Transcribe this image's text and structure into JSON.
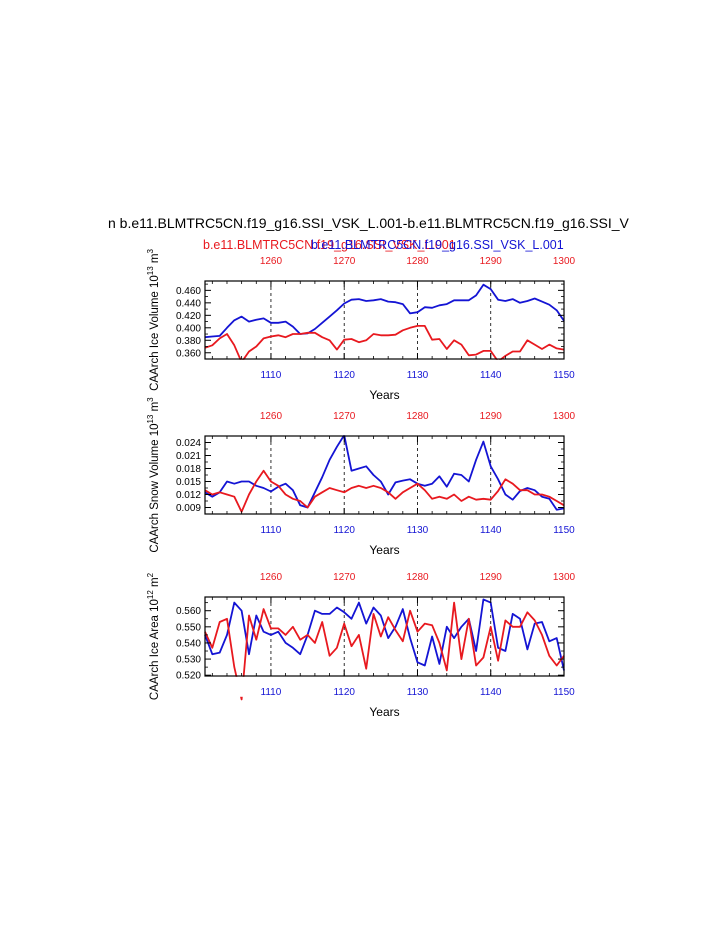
{
  "figure": {
    "main_title": "n b.e11.BLMTRC5CN.f19_g16.SSI_VSK_L.001-b.e11.BLMTRC5CN.f19_g16.SSI_V",
    "case_red": "b.e11.BLMTRC5CN.f19_g16.SSI_VSK_L.001",
    "case_blue": "b.e11.BLMTRC5CN.f19_g16.SSI_VSK_L.001",
    "colors": {
      "red": "#e8191f",
      "blue": "#1414d4"
    }
  },
  "chart_data": [
    {
      "type": "line",
      "ylabel": "CAArch Ice Volume",
      "yunit_main": "10",
      "yunit_exp": "13",
      "yunit_tail": " m",
      "yunit_tail_exp": "3",
      "xlabel": "Years",
      "ylim": [
        0.35,
        0.475
      ],
      "yticks": [
        0.36,
        0.38,
        0.4,
        0.42,
        0.44,
        0.46
      ],
      "ytick_labels": [
        "0.360",
        "0.380",
        "0.400",
        "0.420",
        "0.440",
        "0.460"
      ],
      "x_bottom_range": [
        1101,
        1150
      ],
      "x_bottom_ticks": [
        1110,
        1120,
        1130,
        1140,
        1150
      ],
      "x_top_range": [
        1251,
        1300
      ],
      "x_top_ticks": [
        1260,
        1270,
        1280,
        1290,
        1300
      ],
      "series": [
        {
          "color": "blue",
          "axis": "bottom",
          "x": [
            1101,
            1102,
            1103,
            1104,
            1105,
            1106,
            1107,
            1108,
            1109,
            1110,
            1111,
            1112,
            1113,
            1114,
            1115,
            1116,
            1117,
            1118,
            1119,
            1120,
            1121,
            1122,
            1123,
            1124,
            1125,
            1126,
            1127,
            1128,
            1129,
            1130,
            1131,
            1132,
            1133,
            1134,
            1135,
            1136,
            1137,
            1138,
            1139,
            1140,
            1141,
            1142,
            1143,
            1144,
            1145,
            1146,
            1147,
            1148,
            1149,
            1150
          ],
          "y": [
            0.385,
            0.386,
            0.387,
            0.4,
            0.412,
            0.418,
            0.41,
            0.413,
            0.415,
            0.408,
            0.408,
            0.41,
            0.402,
            0.39,
            0.391,
            0.398,
            0.408,
            0.418,
            0.428,
            0.439,
            0.445,
            0.446,
            0.443,
            0.444,
            0.446,
            0.442,
            0.441,
            0.438,
            0.423,
            0.425,
            0.433,
            0.432,
            0.436,
            0.438,
            0.444,
            0.444,
            0.444,
            0.452,
            0.469,
            0.462,
            0.445,
            0.443,
            0.446,
            0.44,
            0.443,
            0.447,
            0.442,
            0.437,
            0.428,
            0.411
          ]
        },
        {
          "color": "red",
          "axis": "top",
          "x": [
            1251,
            1252,
            1253,
            1254,
            1255,
            1256,
            1257,
            1258,
            1259,
            1260,
            1261,
            1262,
            1263,
            1264,
            1265,
            1266,
            1267,
            1268,
            1269,
            1270,
            1271,
            1272,
            1273,
            1274,
            1275,
            1276,
            1277,
            1278,
            1279,
            1280,
            1281,
            1282,
            1283,
            1284,
            1285,
            1286,
            1287,
            1288,
            1289,
            1290,
            1291,
            1292,
            1293,
            1294,
            1295,
            1296,
            1297,
            1298,
            1299,
            1300
          ],
          "y": [
            0.368,
            0.372,
            0.383,
            0.39,
            0.372,
            0.345,
            0.362,
            0.37,
            0.383,
            0.386,
            0.388,
            0.385,
            0.39,
            0.39,
            0.392,
            0.392,
            0.385,
            0.38,
            0.365,
            0.381,
            0.382,
            0.377,
            0.38,
            0.39,
            0.388,
            0.388,
            0.389,
            0.396,
            0.4,
            0.403,
            0.403,
            0.381,
            0.382,
            0.366,
            0.38,
            0.373,
            0.356,
            0.357,
            0.363,
            0.363,
            0.346,
            0.355,
            0.362,
            0.362,
            0.38,
            0.373,
            0.366,
            0.373,
            0.367,
            0.365
          ]
        }
      ]
    },
    {
      "type": "line",
      "ylabel": "CAArch Snow Volume",
      "yunit_main": "10",
      "yunit_exp": "13",
      "yunit_tail": " m",
      "yunit_tail_exp": "3",
      "xlabel": "Years",
      "ylim": [
        0.0075,
        0.0255
      ],
      "yticks": [
        0.009,
        0.012,
        0.015,
        0.018,
        0.021,
        0.024
      ],
      "ytick_labels": [
        "0.009",
        "0.012",
        "0.015",
        "0.018",
        "0.021",
        "0.024"
      ],
      "x_bottom_range": [
        1101,
        1150
      ],
      "x_bottom_ticks": [
        1110,
        1120,
        1130,
        1140,
        1150
      ],
      "x_top_range": [
        1251,
        1300
      ],
      "x_top_ticks": [
        1260,
        1270,
        1280,
        1290,
        1300
      ],
      "series": [
        {
          "color": "blue",
          "axis": "bottom",
          "x": [
            1101,
            1102,
            1103,
            1104,
            1105,
            1106,
            1107,
            1108,
            1109,
            1110,
            1111,
            1112,
            1113,
            1114,
            1115,
            1116,
            1117,
            1118,
            1119,
            1120,
            1121,
            1122,
            1123,
            1124,
            1125,
            1126,
            1127,
            1128,
            1129,
            1130,
            1131,
            1132,
            1133,
            1134,
            1135,
            1136,
            1137,
            1138,
            1139,
            1140,
            1141,
            1142,
            1143,
            1144,
            1145,
            1146,
            1147,
            1148,
            1149,
            1150
          ],
          "y": [
            0.0125,
            0.0115,
            0.0125,
            0.015,
            0.0145,
            0.015,
            0.015,
            0.014,
            0.0135,
            0.0127,
            0.0138,
            0.0145,
            0.013,
            0.0095,
            0.009,
            0.0125,
            0.016,
            0.02,
            0.023,
            0.0257,
            0.0175,
            0.018,
            0.0185,
            0.0165,
            0.015,
            0.012,
            0.0148,
            0.0152,
            0.0155,
            0.0145,
            0.014,
            0.0145,
            0.0162,
            0.0138,
            0.0168,
            0.0165,
            0.015,
            0.02,
            0.0242,
            0.0185,
            0.0155,
            0.012,
            0.0108,
            0.0128,
            0.0135,
            0.013,
            0.0115,
            0.011,
            0.0085,
            0.0088
          ]
        },
        {
          "color": "red",
          "axis": "top",
          "x": [
            1251,
            1252,
            1253,
            1254,
            1255,
            1256,
            1257,
            1258,
            1259,
            1260,
            1261,
            1262,
            1263,
            1264,
            1265,
            1266,
            1267,
            1268,
            1269,
            1270,
            1271,
            1272,
            1273,
            1274,
            1275,
            1276,
            1277,
            1278,
            1279,
            1280,
            1281,
            1282,
            1283,
            1284,
            1285,
            1286,
            1287,
            1288,
            1289,
            1290,
            1291,
            1292,
            1293,
            1294,
            1295,
            1296,
            1297,
            1298,
            1299,
            1300
          ],
          "y": [
            0.013,
            0.012,
            0.0125,
            0.012,
            0.0115,
            0.008,
            0.012,
            0.015,
            0.0175,
            0.015,
            0.014,
            0.012,
            0.011,
            0.0105,
            0.009,
            0.0115,
            0.0125,
            0.0135,
            0.013,
            0.0125,
            0.0135,
            0.014,
            0.0135,
            0.014,
            0.0135,
            0.0125,
            0.011,
            0.0125,
            0.0135,
            0.0145,
            0.013,
            0.011,
            0.0115,
            0.011,
            0.012,
            0.0105,
            0.0115,
            0.0108,
            0.011,
            0.0108,
            0.0128,
            0.0155,
            0.0145,
            0.013,
            0.013,
            0.012,
            0.012,
            0.0115,
            0.0105,
            0.0095
          ]
        }
      ]
    },
    {
      "type": "line",
      "ylabel": "CAArch Ice Area",
      "yunit_main": "10",
      "yunit_exp": "12",
      "yunit_tail": " m",
      "yunit_tail_exp": "2",
      "xlabel": "Years",
      "ylim": [
        0.5195,
        0.5685
      ],
      "yticks": [
        0.52,
        0.53,
        0.54,
        0.55,
        0.56
      ],
      "ytick_labels": [
        "0.520",
        "0.530",
        "0.540",
        "0.550",
        "0.560"
      ],
      "x_bottom_range": [
        1101,
        1150
      ],
      "x_bottom_ticks": [
        1110,
        1120,
        1130,
        1140,
        1150
      ],
      "x_top_range": [
        1251,
        1300
      ],
      "x_top_ticks": [
        1260,
        1270,
        1280,
        1290,
        1300
      ],
      "series": [
        {
          "color": "blue",
          "axis": "bottom",
          "x": [
            1101,
            1102,
            1103,
            1104,
            1105,
            1106,
            1107,
            1108,
            1109,
            1110,
            1111,
            1112,
            1113,
            1114,
            1115,
            1116,
            1117,
            1118,
            1119,
            1120,
            1121,
            1122,
            1123,
            1124,
            1125,
            1126,
            1127,
            1128,
            1129,
            1130,
            1131,
            1132,
            1133,
            1134,
            1135,
            1136,
            1137,
            1138,
            1139,
            1140,
            1141,
            1142,
            1143,
            1144,
            1145,
            1146,
            1147,
            1148,
            1149,
            1150
          ],
          "y": [
            0.545,
            0.533,
            0.534,
            0.545,
            0.565,
            0.56,
            0.533,
            0.557,
            0.547,
            0.545,
            0.547,
            0.54,
            0.537,
            0.533,
            0.545,
            0.56,
            0.558,
            0.558,
            0.562,
            0.559,
            0.555,
            0.565,
            0.552,
            0.562,
            0.557,
            0.543,
            0.55,
            0.561,
            0.543,
            0.528,
            0.526,
            0.544,
            0.527,
            0.55,
            0.543,
            0.55,
            0.555,
            0.535,
            0.567,
            0.565,
            0.537,
            0.535,
            0.558,
            0.555,
            0.536,
            0.552,
            0.553,
            0.541,
            0.543,
            0.523
          ]
        },
        {
          "color": "red",
          "axis": "top",
          "x": [
            1251,
            1252,
            1253,
            1254,
            1255,
            1256,
            1257,
            1258,
            1259,
            1260,
            1261,
            1262,
            1263,
            1264,
            1265,
            1266,
            1267,
            1268,
            1269,
            1270,
            1271,
            1272,
            1273,
            1274,
            1275,
            1276,
            1277,
            1278,
            1279,
            1280,
            1281,
            1282,
            1283,
            1284,
            1285,
            1286,
            1287,
            1288,
            1289,
            1290,
            1291,
            1292,
            1293,
            1294,
            1295,
            1296,
            1297,
            1298,
            1299,
            1300
          ],
          "y": [
            0.547,
            0.537,
            0.553,
            0.555,
            0.525,
            0.505,
            0.557,
            0.542,
            0.561,
            0.549,
            0.549,
            0.545,
            0.55,
            0.542,
            0.545,
            0.54,
            0.553,
            0.532,
            0.537,
            0.552,
            0.538,
            0.545,
            0.524,
            0.558,
            0.544,
            0.556,
            0.548,
            0.541,
            0.56,
            0.547,
            0.552,
            0.551,
            0.54,
            0.523,
            0.565,
            0.53,
            0.555,
            0.526,
            0.531,
            0.55,
            0.529,
            0.554,
            0.55,
            0.55,
            0.559,
            0.554,
            0.545,
            0.532,
            0.526,
            0.532
          ]
        }
      ]
    }
  ]
}
